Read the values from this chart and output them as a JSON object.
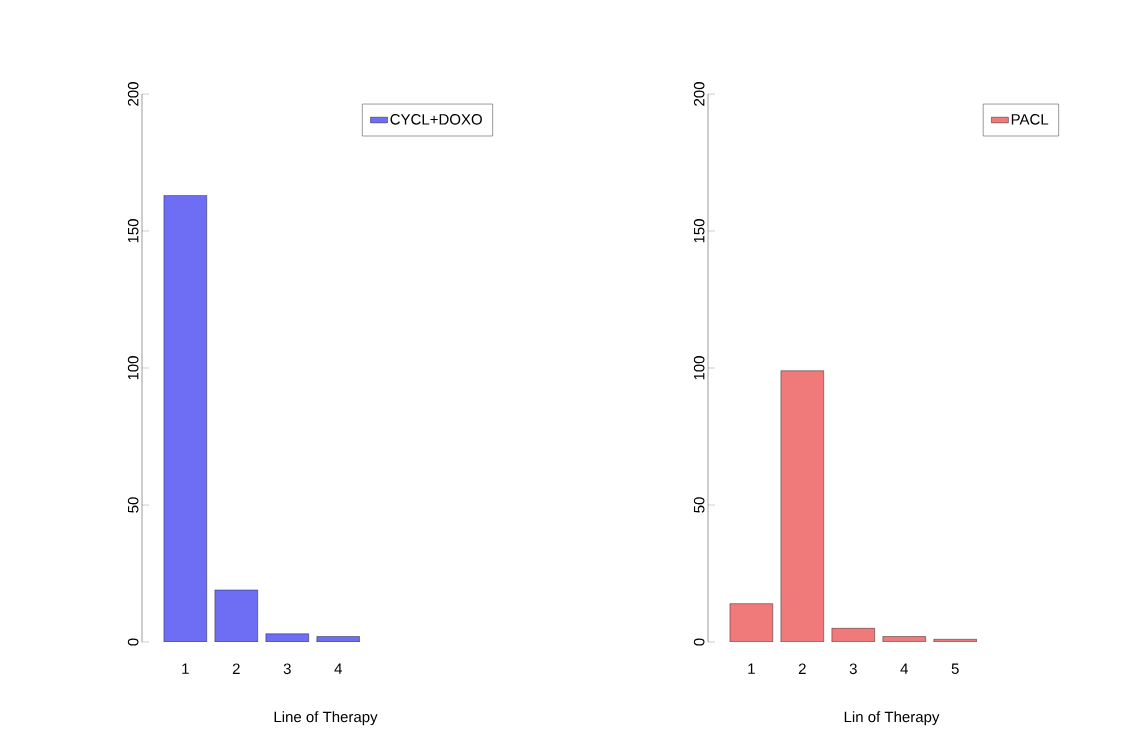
{
  "chart_data": [
    {
      "type": "bar",
      "categories": [
        "1",
        "2",
        "3",
        "4"
      ],
      "series": [
        {
          "name": "CYCL+DOXO",
          "color": "#6e6ef5",
          "values": [
            163,
            19,
            3,
            2
          ]
        }
      ],
      "xlabel": "Line of Therapy",
      "ylim": [
        0,
        200
      ],
      "yticks": [
        0,
        50,
        100,
        150,
        200
      ],
      "legend": "top right",
      "grid": false
    },
    {
      "type": "bar",
      "categories": [
        "1",
        "2",
        "3",
        "4",
        "5"
      ],
      "series": [
        {
          "name": "PACL",
          "color": "#f07a7a",
          "values": [
            14,
            99,
            5,
            2,
            1
          ]
        }
      ],
      "xlabel": "Lin of Therapy",
      "ylim": [
        0,
        200
      ],
      "yticks": [
        0,
        50,
        100,
        150,
        200
      ],
      "legend": "top right",
      "grid": false
    }
  ]
}
